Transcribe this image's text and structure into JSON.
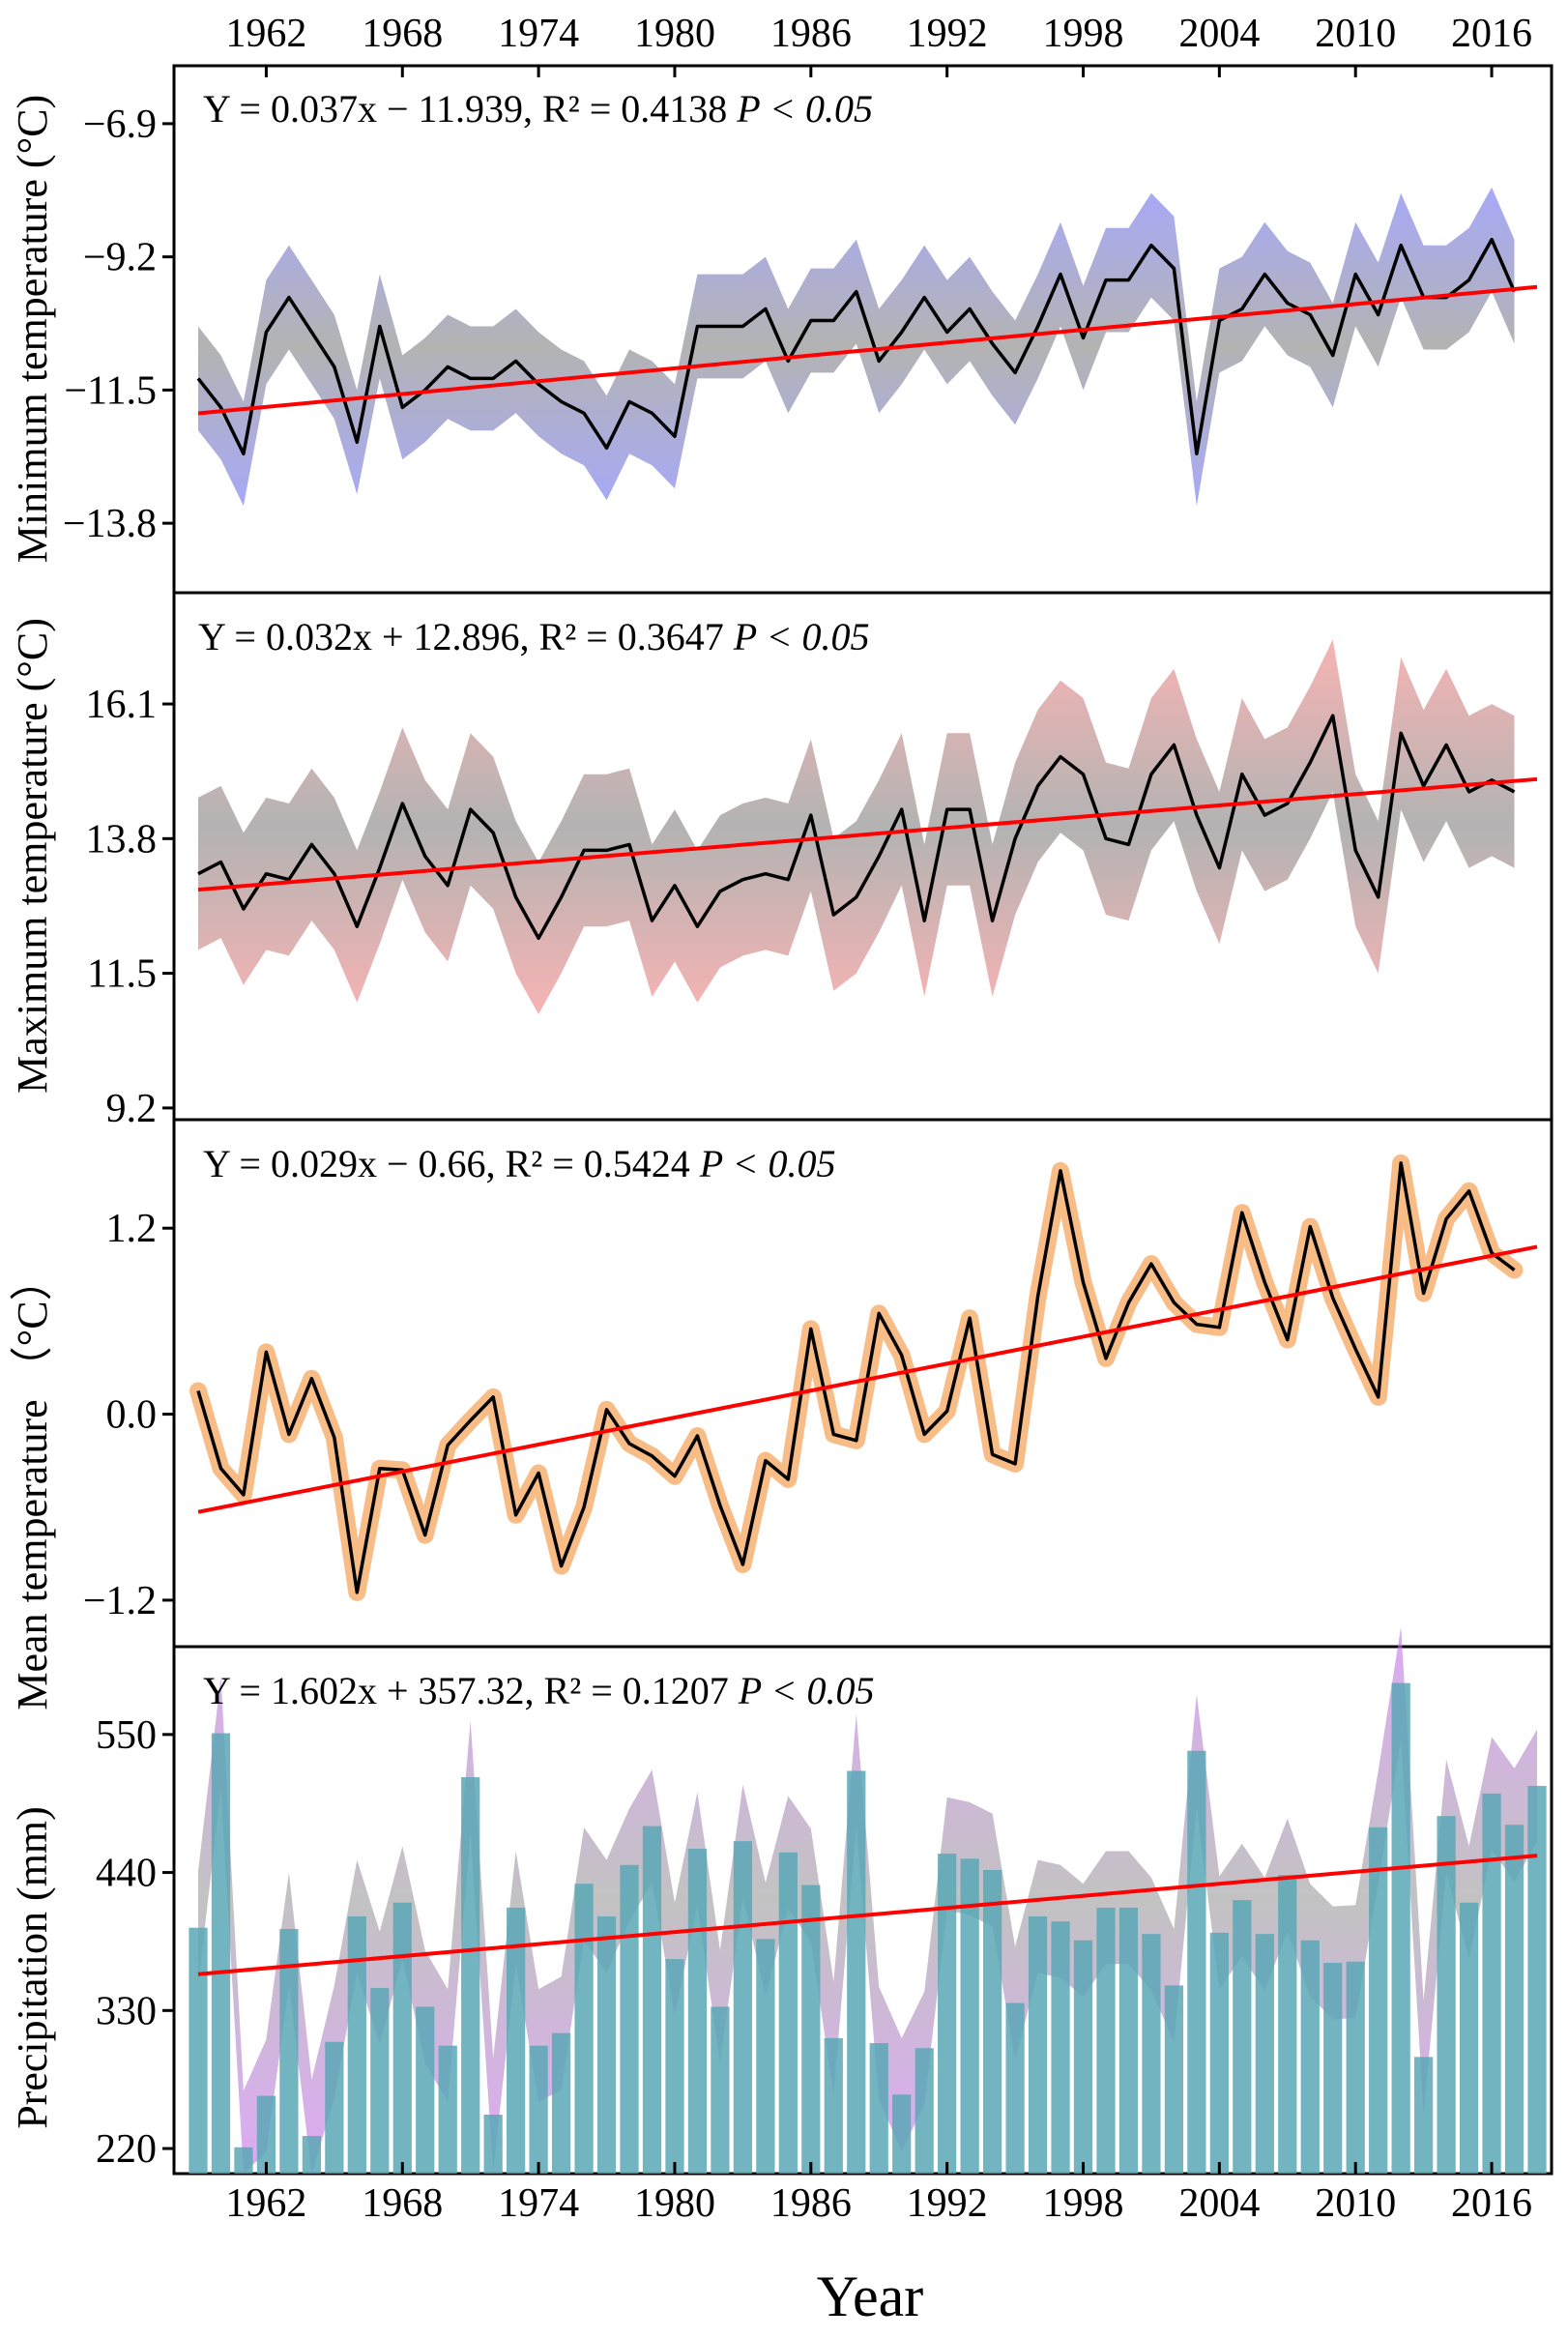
{
  "figure": {
    "x_axis_label": "Year",
    "x_ticks": [
      "1962",
      "1968",
      "1974",
      "1980",
      "1986",
      "1992",
      "1998",
      "2004",
      "2010",
      "2016"
    ]
  },
  "chart_data": [
    {
      "id": "min",
      "type": "line",
      "ylabel": "Minimum temperature (°C)",
      "yticks": [
        "−6.9",
        "−9.2",
        "−11.5",
        "−13.8"
      ],
      "ytick_values": [
        -6.9,
        -9.2,
        -11.5,
        -13.8
      ],
      "ylim": [
        -15,
        -5.9
      ],
      "equation": "Y = 0.037x − 11.939, R² = 0.4138",
      "significance": "P < 0.05",
      "colors": {
        "band": "#8a8cf5",
        "band_alt": "#9a9a9a",
        "line": "#000000",
        "trend": "#ff0000"
      },
      "band_halfwidth": 0.9,
      "trend": {
        "slope": 0.037,
        "intercept": -11.939
      },
      "x_start": 1959,
      "values": [
        -11.3,
        -11.8,
        -12.6,
        -10.5,
        -9.9,
        -10.5,
        -11.1,
        -12.4,
        -10.4,
        -11.8,
        -11.5,
        -11.1,
        -11.3,
        -11.3,
        -11.0,
        -11.4,
        -11.7,
        -11.9,
        -12.5,
        -11.7,
        -11.9,
        -12.3,
        -10.4,
        -10.4,
        -10.4,
        -10.1,
        -11.0,
        -10.3,
        -10.3,
        -9.8,
        -11.0,
        -10.5,
        -9.9,
        -10.5,
        -10.1,
        -10.7,
        -11.2,
        -10.4,
        -9.5,
        -10.6,
        -9.6,
        -9.6,
        -9.0,
        -9.4,
        -12.6,
        -10.3,
        -10.1,
        -9.5,
        -10.0,
        -10.2,
        -10.9,
        -9.5,
        -10.2,
        -9.0,
        -9.9,
        -9.9,
        -9.6,
        -8.9,
        -9.8
      ]
    },
    {
      "id": "max",
      "type": "line",
      "ylabel": "Maximum temperature (°C)",
      "yticks": [
        "16.1",
        "13.8",
        "11.5",
        "9.2"
      ],
      "ytick_values": [
        16.1,
        13.8,
        11.5,
        9.2
      ],
      "ylim": [
        9.0,
        18.0
      ],
      "equation": "Y = 0.032x + 12.896, R² = 0.3647",
      "significance": "P < 0.05",
      "colors": {
        "band": "#f59a9a",
        "band_alt": "#9a9a9a",
        "line": "#000000",
        "trend": "#ff0000"
      },
      "band_halfwidth": 1.3,
      "trend": {
        "slope": 0.032,
        "intercept": 12.896
      },
      "x_start": 1959,
      "values": [
        13.2,
        13.4,
        12.6,
        13.2,
        13.1,
        13.7,
        13.2,
        12.3,
        13.3,
        14.4,
        13.5,
        13.0,
        14.3,
        13.9,
        12.8,
        12.1,
        12.8,
        13.6,
        13.6,
        13.7,
        12.4,
        13.0,
        12.3,
        12.9,
        13.1,
        13.2,
        13.1,
        14.2,
        12.5,
        12.8,
        13.5,
        14.3,
        12.4,
        14.3,
        14.3,
        12.4,
        13.8,
        14.7,
        15.2,
        14.9,
        13.8,
        13.7,
        14.9,
        15.4,
        14.2,
        13.3,
        14.9,
        14.2,
        14.4,
        15.1,
        15.9,
        13.6,
        12.8,
        15.6,
        14.7,
        15.4,
        14.6,
        14.8,
        14.6
      ]
    },
    {
      "id": "mean",
      "type": "line",
      "ylabel": "Mean temperature （°C）",
      "yticks": [
        "1.2",
        "0.0",
        "−1.2"
      ],
      "ytick_values": [
        1.2,
        0.0,
        -1.2
      ],
      "ylim": [
        -1.5,
        1.9
      ],
      "equation": "Y = 0.029x − 0.66, R² = 0.5424",
      "significance": "P < 0.05",
      "colors": {
        "band": "#f7b072",
        "line": "#000000",
        "trend": "#ff0000"
      },
      "trend": {
        "slope": 0.029,
        "intercept": -0.66
      },
      "x_start": 1959,
      "values": [
        0.15,
        -0.35,
        -0.52,
        0.4,
        -0.13,
        0.23,
        -0.15,
        -1.15,
        -0.35,
        -0.36,
        -0.78,
        -0.2,
        -0.04,
        0.11,
        -0.65,
        -0.38,
        -0.98,
        -0.6,
        0.03,
        -0.19,
        -0.27,
        -0.4,
        -0.14,
        -0.59,
        -0.97,
        -0.3,
        -0.42,
        0.55,
        -0.13,
        -0.17,
        0.65,
        0.38,
        -0.13,
        0.02,
        0.62,
        -0.26,
        -0.32,
        0.76,
        1.57,
        0.85,
        0.36,
        0.72,
        0.97,
        0.72,
        0.58,
        0.56,
        1.3,
        0.85,
        0.48,
        1.21,
        0.75,
        0.42,
        0.11,
        1.62,
        0.78,
        1.26,
        1.44,
        1.04,
        0.93
      ]
    },
    {
      "id": "precip",
      "type": "bar",
      "ylabel": "Precipitation (mm)",
      "yticks": [
        "550",
        "440",
        "330",
        "220"
      ],
      "ytick_values": [
        550,
        440,
        330,
        220
      ],
      "ylim": [
        200,
        620
      ],
      "equation": "Y = 1.602x + 357.32, R² = 0.1207",
      "significance": "P < 0.05",
      "colors": {
        "band": "#c770ee",
        "band_alt": "#555555",
        "bar": "#5aa7b6",
        "trend": "#ff0000"
      },
      "band_halfwidth": 45,
      "trend": {
        "slope": 1.602,
        "intercept": 357.32
      },
      "x_start": 1959,
      "values": [
        396,
        551,
        221,
        262,
        395,
        230,
        305,
        405,
        348,
        416,
        333,
        302,
        516,
        247,
        412,
        302,
        312,
        431,
        405,
        446,
        477,
        371,
        459,
        333,
        465,
        387,
        456,
        430,
        308,
        521,
        304,
        263,
        300,
        455,
        451,
        442,
        336,
        405,
        401,
        386,
        412,
        412,
        391,
        350,
        537,
        392,
        418,
        391,
        438,
        386,
        368,
        369,
        476,
        591,
        293,
        485,
        416,
        503,
        478,
        509
      ]
    }
  ]
}
